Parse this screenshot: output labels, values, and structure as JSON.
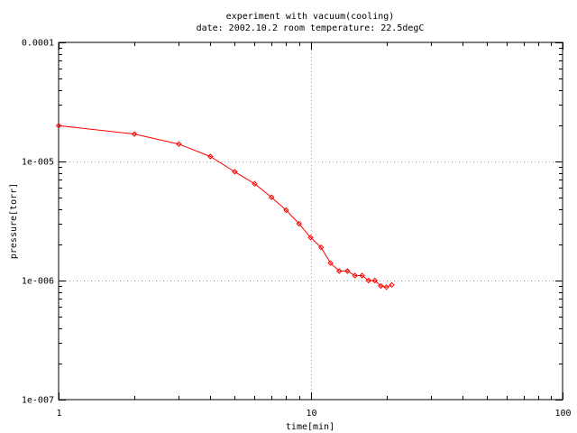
{
  "chart_data": {
    "type": "line",
    "title": "experiment with vacuum(cooling)",
    "subtitle": "date: 2002.10.2 room temperature: 22.5degC",
    "xlabel": "time[min]",
    "ylabel": "pressure[torr]",
    "x_scale": "log",
    "y_scale": "log",
    "xlim": [
      1,
      100
    ],
    "ylim": [
      1e-07,
      0.0001
    ],
    "x_ticks": [
      {
        "value": 1,
        "label": "1"
      },
      {
        "value": 10,
        "label": "10"
      },
      {
        "value": 100,
        "label": "100"
      }
    ],
    "y_ticks": [
      {
        "value": 1e-07,
        "label": "1e-007"
      },
      {
        "value": 1e-06,
        "label": "1e-006"
      },
      {
        "value": 1e-05,
        "label": "1e-005"
      },
      {
        "value": 0.0001,
        "label": "0.0001"
      }
    ],
    "grid": true,
    "series": [
      {
        "color": "#ff0000",
        "marker": "diamond",
        "x": [
          1,
          2,
          3,
          4,
          5,
          6,
          7,
          8,
          9,
          10,
          11,
          12,
          13,
          14,
          15,
          16,
          17,
          18,
          19,
          20,
          21
        ],
        "y": [
          2e-05,
          1.7e-05,
          1.4e-05,
          1.1e-05,
          8.2e-06,
          6.5e-06,
          5e-06,
          3.9e-06,
          3e-06,
          2.3e-06,
          1.9e-06,
          1.4e-06,
          1.2e-06,
          1.2e-06,
          1.1e-06,
          1.1e-06,
          1e-06,
          1e-06,
          9e-07,
          8.8e-07,
          9.2e-07
        ]
      }
    ]
  }
}
